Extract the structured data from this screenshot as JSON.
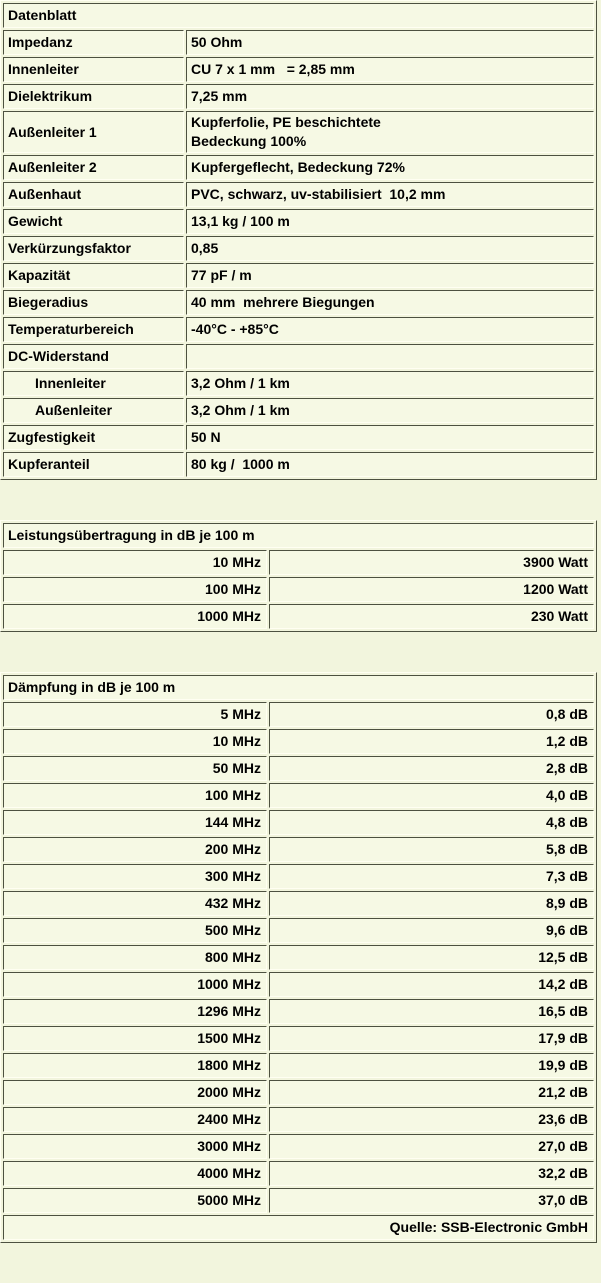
{
  "colors": {
    "page_background": "#f2f5dd",
    "cell_background": "#f6f9e4",
    "border_dark": "#4d5140",
    "border_light": "#fffff2",
    "text": "#000000"
  },
  "datenblatt": {
    "title": "Datenblatt",
    "rows": [
      {
        "label": "Impedanz",
        "value": "50 Ohm",
        "indent": false
      },
      {
        "label": "Innenleiter",
        "value": "CU 7 x 1 mm   = 2,85 mm",
        "indent": false
      },
      {
        "label": "Dielektrikum",
        "value": "7,25 mm",
        "indent": false
      },
      {
        "label": "Außenleiter 1",
        "value": "Kupferfolie, PE beschichtete\nBedeckung 100%",
        "indent": false
      },
      {
        "label": "Außenleiter 2",
        "value": "Kupfergeflecht, Bedeckung 72%",
        "indent": false
      },
      {
        "label": "Außenhaut",
        "value": "PVC, schwarz, uv-stabilisiert  10,2 mm",
        "indent": false
      },
      {
        "label": "Gewicht",
        "value": "13,1 kg / 100 m",
        "indent": false
      },
      {
        "label": "Verkürzungsfaktor",
        "value": "0,85",
        "indent": false
      },
      {
        "label": "Kapazität",
        "value": "77 pF / m",
        "indent": false
      },
      {
        "label": "Biegeradius",
        "value": "40 mm  mehrere Biegungen",
        "indent": false
      },
      {
        "label": "Temperaturbereich",
        "value": "-40°C - +85°C",
        "indent": false
      },
      {
        "label": "DC-Widerstand",
        "value": "",
        "indent": false
      },
      {
        "label": "Innenleiter",
        "value": "3,2 Ohm / 1 km",
        "indent": true
      },
      {
        "label": "Außenleiter",
        "value": "3,2 Ohm / 1 km",
        "indent": true
      },
      {
        "label": "Zugfestigkeit",
        "value": "50 N",
        "indent": false
      },
      {
        "label": "Kupferanteil",
        "value": "80 kg /  1000 m",
        "indent": false
      }
    ]
  },
  "leistung": {
    "title": "Leistungsübertragung in dB je 100 m",
    "rows": [
      {
        "freq": "10 MHz",
        "value": "3900 Watt"
      },
      {
        "freq": "100 MHz",
        "value": "1200 Watt"
      },
      {
        "freq": "1000 MHz",
        "value": "230 Watt"
      }
    ]
  },
  "daempfung": {
    "title": "Dämpfung in dB je 100 m",
    "rows": [
      {
        "freq": "5 MHz",
        "value": "0,8 dB"
      },
      {
        "freq": "10 MHz",
        "value": "1,2 dB"
      },
      {
        "freq": "50 MHz",
        "value": "2,8 dB"
      },
      {
        "freq": "100 MHz",
        "value": "4,0 dB"
      },
      {
        "freq": "144 MHz",
        "value": "4,8 dB"
      },
      {
        "freq": "200 MHz",
        "value": "5,8 dB"
      },
      {
        "freq": "300 MHz",
        "value": "7,3 dB"
      },
      {
        "freq": "432 MHz",
        "value": "8,9 dB"
      },
      {
        "freq": "500 MHz",
        "value": "9,6 dB"
      },
      {
        "freq": "800 MHz",
        "value": "12,5 dB"
      },
      {
        "freq": "1000 MHz",
        "value": "14,2 dB"
      },
      {
        "freq": "1296 MHz",
        "value": "16,5 dB"
      },
      {
        "freq": "1500 MHz",
        "value": "17,9 dB"
      },
      {
        "freq": "1800 MHz",
        "value": "19,9 dB"
      },
      {
        "freq": "2000 MHz",
        "value": "21,2 dB"
      },
      {
        "freq": "2400 MHz",
        "value": "23,6 dB"
      },
      {
        "freq": "3000 MHz",
        "value": "27,0 dB"
      },
      {
        "freq": "4000 MHz",
        "value": "32,2 dB"
      },
      {
        "freq": "5000 MHz",
        "value": "37,0 dB"
      }
    ],
    "footer": "Quelle: SSB-Electronic GmbH"
  }
}
